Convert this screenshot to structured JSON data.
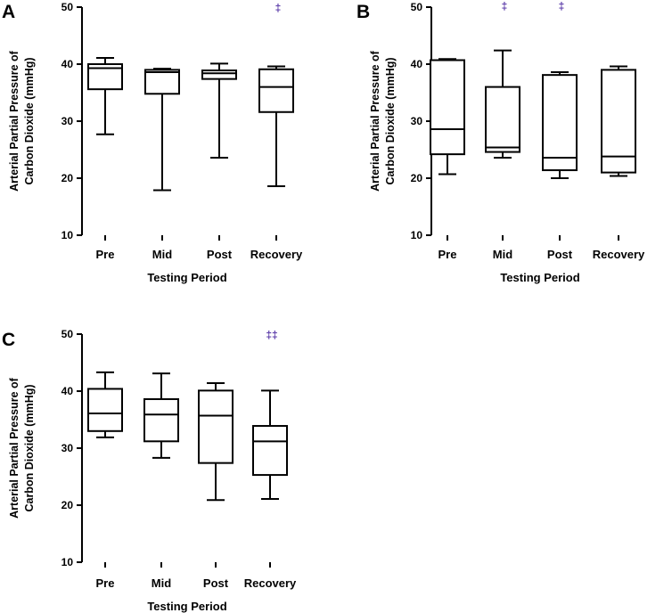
{
  "figure": {
    "panels": [
      {
        "letter": "A"
      },
      {
        "letter": "B"
      },
      {
        "letter": "C"
      }
    ]
  },
  "chart_data": [
    {
      "type": "box",
      "panel": "A",
      "ylabel_line1": "Arterial Partial Pressure of",
      "ylabel_line2": "Carbon Dioxide (mmHg)",
      "xlabel": "Testing Period",
      "ylim": [
        10,
        50
      ],
      "yticks": [
        10,
        20,
        30,
        40,
        50
      ],
      "categories": [
        "Pre",
        "Mid",
        "Post",
        "Recovery"
      ],
      "boxes": [
        {
          "min": 27.7,
          "q1": 35.6,
          "median": 39.3,
          "q3": 40.0,
          "max": 41.1
        },
        {
          "min": 17.9,
          "q1": 34.8,
          "median": 38.6,
          "q3": 39.0,
          "max": 39.2
        },
        {
          "min": 23.6,
          "q1": 37.4,
          "median": 38.4,
          "q3": 38.9,
          "max": 40.1
        },
        {
          "min": 18.6,
          "q1": 31.6,
          "median": 36.0,
          "q3": 39.1,
          "max": 39.6
        }
      ],
      "significance": [
        {
          "category": "Recovery",
          "symbol": "‡"
        }
      ]
    },
    {
      "type": "box",
      "panel": "B",
      "ylabel_line1": "Arterial Partial Pressure of",
      "ylabel_line2": "Carbon Dioxide (mmHg)",
      "xlabel": "Testing Period",
      "ylim": [
        10,
        50
      ],
      "yticks": [
        10,
        20,
        30,
        40,
        50
      ],
      "categories": [
        "Pre",
        "Mid",
        "Post",
        "Recovery"
      ],
      "boxes": [
        {
          "min": 20.7,
          "q1": 24.2,
          "median": 28.6,
          "q3": 40.7,
          "max": 40.9
        },
        {
          "min": 23.6,
          "q1": 24.6,
          "median": 25.4,
          "q3": 36.0,
          "max": 42.4
        },
        {
          "min": 20.0,
          "q1": 21.4,
          "median": 23.6,
          "q3": 38.1,
          "max": 38.6
        },
        {
          "min": 20.4,
          "q1": 21.0,
          "median": 23.8,
          "q3": 39.0,
          "max": 39.6
        }
      ],
      "significance": [
        {
          "category": "Mid",
          "symbol": "‡"
        },
        {
          "category": "Post",
          "symbol": "‡"
        }
      ]
    },
    {
      "type": "box",
      "panel": "C",
      "ylabel_line1": "Arterial Partial Pressure of",
      "ylabel_line2": "Carbon Dioxide (mmHg)",
      "xlabel": "Testing Period",
      "ylim": [
        10,
        50
      ],
      "yticks": [
        10,
        20,
        30,
        40,
        50
      ],
      "categories": [
        "Pre",
        "Mid",
        "Post",
        "Recovery"
      ],
      "boxes": [
        {
          "min": 31.9,
          "q1": 33.0,
          "median": 36.1,
          "q3": 40.4,
          "max": 43.3
        },
        {
          "min": 28.3,
          "q1": 31.2,
          "median": 35.9,
          "q3": 38.6,
          "max": 43.1
        },
        {
          "min": 20.9,
          "q1": 27.4,
          "median": 35.7,
          "q3": 40.1,
          "max": 41.4
        },
        {
          "min": 21.1,
          "q1": 25.3,
          "median": 31.2,
          "q3": 33.9,
          "max": 40.1
        }
      ],
      "significance": [
        {
          "category": "Recovery",
          "symbol": "‡‡"
        }
      ]
    }
  ]
}
